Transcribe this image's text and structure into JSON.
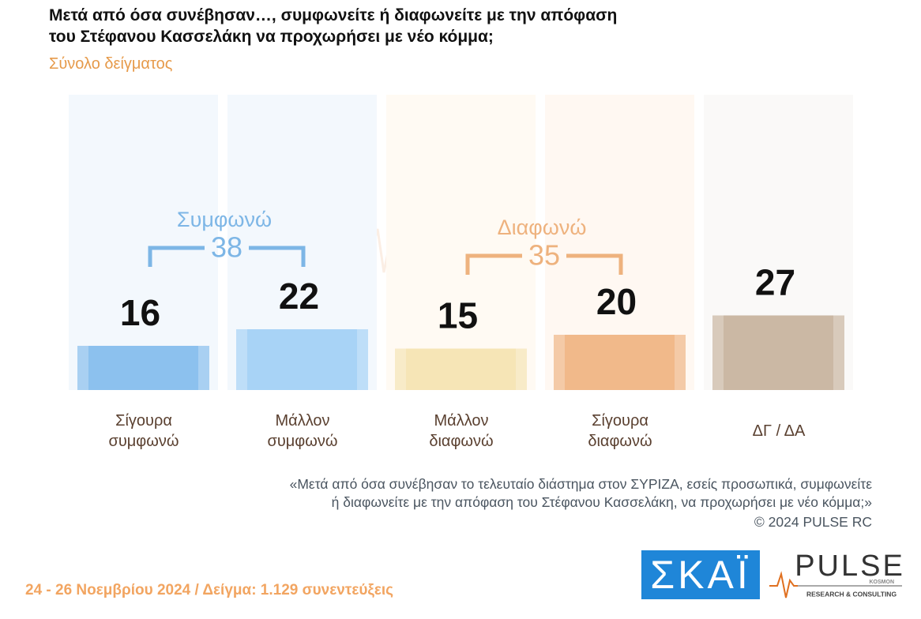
{
  "chart_data": {
    "type": "bar",
    "title": "Μετά από όσα συνέβησαν…, συμφωνείτε ή διαφωνείτε με την απόφαση\nτου Στέφανου Κασσελάκη να προχωρήσει με νέο κόμμα;",
    "subtitle": "Σύνολο δείγματος",
    "categories": [
      "Σίγουρα συμφωνώ",
      "Μάλλον συμφωνώ",
      "Μάλλον διαφωνώ",
      "Σίγουρα διαφωνώ",
      "ΔΓ / ΔΑ"
    ],
    "values": [
      16,
      22,
      15,
      20,
      27
    ],
    "colors": [
      "#8cc1ee",
      "#a8d3f6",
      "#f6e5b6",
      "#f1b98a",
      "#cbb8a4"
    ],
    "groups": [
      {
        "name": "Συμφωνώ",
        "value": 38,
        "color": "#7db6e6"
      },
      {
        "name": "Διαφωνώ",
        "value": 35,
        "color": "#eeb27e"
      }
    ],
    "question": "«Μετά από όσα συνέβησαν το τελευταίο διάστημα στον ΣΥΡΙΖΑ, εσείς προσωπικά, συμφωνείτε\nή διαφωνείτε με την απόφαση του Στέφανου Κασσελάκη, να προχωρήσει με νέο κόμμα;»",
    "copyright": "©  2024  PULSE RC",
    "footer": "24 - 26 Νοεμβρίου 2024  /  Δείγμα:  1.129 συνεντεύξεις",
    "logo_skai": "ΣΚΑΪ",
    "logo_pulse": "PULSE",
    "logo_pulse_sub": "RESEARCH & CONSULTING",
    "logo_kosmon": "KOSMON"
  }
}
